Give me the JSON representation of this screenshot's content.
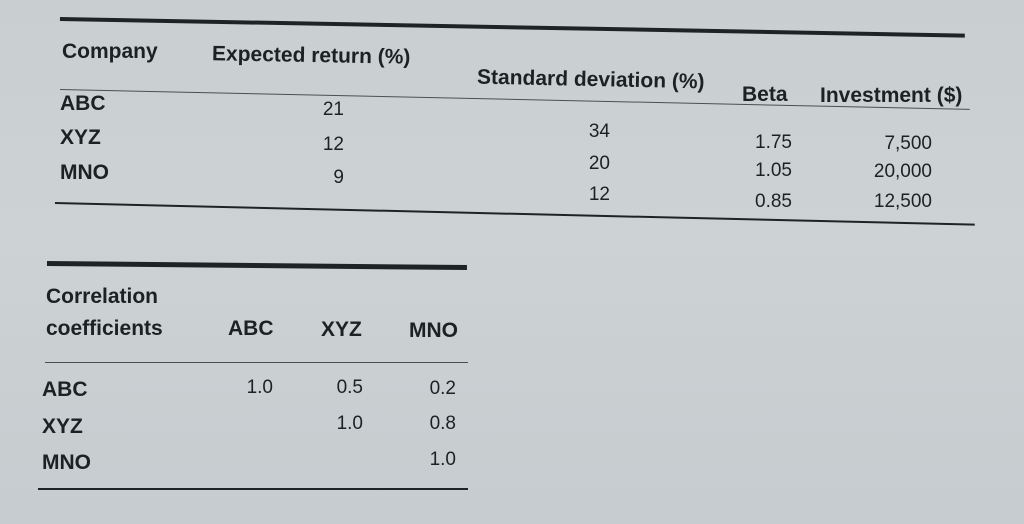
{
  "table1": {
    "headers": [
      "Company",
      "Expected return (%)",
      "Standard deviation (%)",
      "Beta",
      "Investment ($)"
    ],
    "rows": [
      {
        "company": "ABC",
        "expected_return": "21",
        "std_dev": "34",
        "beta": "1.75",
        "investment": "7,500"
      },
      {
        "company": "XYZ",
        "expected_return": "12",
        "std_dev": "20",
        "beta": "1.05",
        "investment": "20,000"
      },
      {
        "company": "MNO",
        "expected_return": "9",
        "std_dev": "12",
        "beta": "0.85",
        "investment": "12,500"
      }
    ]
  },
  "table2": {
    "corner_line1": "Correlation",
    "corner_line2": "coefficients",
    "headers": [
      "ABC",
      "XYZ",
      "MNO"
    ],
    "rows": [
      {
        "label": "ABC",
        "values": [
          "1.0",
          "0.5",
          "0.2"
        ]
      },
      {
        "label": "XYZ",
        "values": [
          "",
          "1.0",
          "0.8"
        ]
      },
      {
        "label": "MNO",
        "values": [
          "",
          "",
          "1.0"
        ]
      }
    ]
  }
}
